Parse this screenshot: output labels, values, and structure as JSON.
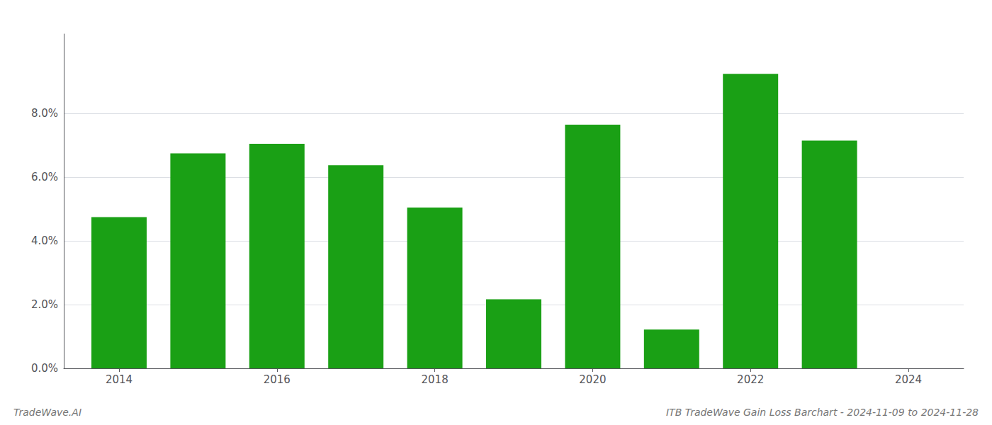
{
  "chart_data": {
    "type": "bar",
    "title": "ITB TradeWave Gain Loss Barchart - 2024-11-09 to 2024-11-28",
    "annotations": [
      "TradeWave.AI"
    ],
    "x": [
      2014,
      2015,
      2016,
      2017,
      2018,
      2019,
      2020,
      2021,
      2022,
      2023
    ],
    "values": [
      0.0475,
      0.0675,
      0.0705,
      0.0638,
      0.0505,
      0.0217,
      0.0765,
      0.0122,
      0.0925,
      0.0715
    ],
    "color": "#1aa015",
    "xlim": [
      2013.3,
      2024.7
    ],
    "xticks": [
      2014,
      2016,
      2018,
      2020,
      2022,
      2024
    ],
    "ylim": [
      0,
      0.105
    ],
    "yticks": [
      {
        "value": 0.0,
        "label": "0.0%"
      },
      {
        "value": 0.02,
        "label": "2.0%"
      },
      {
        "value": 0.04,
        "label": "4.0%"
      },
      {
        "value": 0.06,
        "label": "6.0%"
      },
      {
        "value": 0.08,
        "label": "8.0%"
      }
    ],
    "grid": true
  }
}
